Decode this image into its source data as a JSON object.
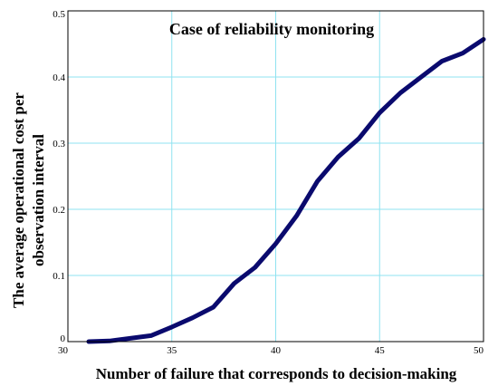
{
  "chart_data": {
    "type": "line",
    "title": "Case of reliability monitoring",
    "xlabel": "Number of failure that corresponds to decision-making",
    "ylabel_lines": [
      "The average operational cost per",
      "observation interval"
    ],
    "xlim": [
      30,
      50
    ],
    "ylim": [
      0,
      0.5
    ],
    "x_ticks": [
      30,
      35,
      40,
      45,
      50
    ],
    "y_ticks": [
      0,
      0.1,
      0.2,
      0.3,
      0.4,
      0.5
    ],
    "grid": true,
    "series": [
      {
        "color": "#0a0a6e",
        "x": [
          31,
          32,
          33,
          34,
          35,
          36,
          37,
          38,
          39,
          40,
          41,
          42,
          43,
          44,
          45,
          46,
          47,
          48,
          49,
          50
        ],
        "y": [
          0.0,
          0.001,
          0.005,
          0.009,
          0.022,
          0.036,
          0.052,
          0.088,
          0.112,
          0.148,
          0.19,
          0.242,
          0.279,
          0.307,
          0.346,
          0.376,
          0.4,
          0.424,
          0.436,
          0.457
        ]
      }
    ]
  }
}
